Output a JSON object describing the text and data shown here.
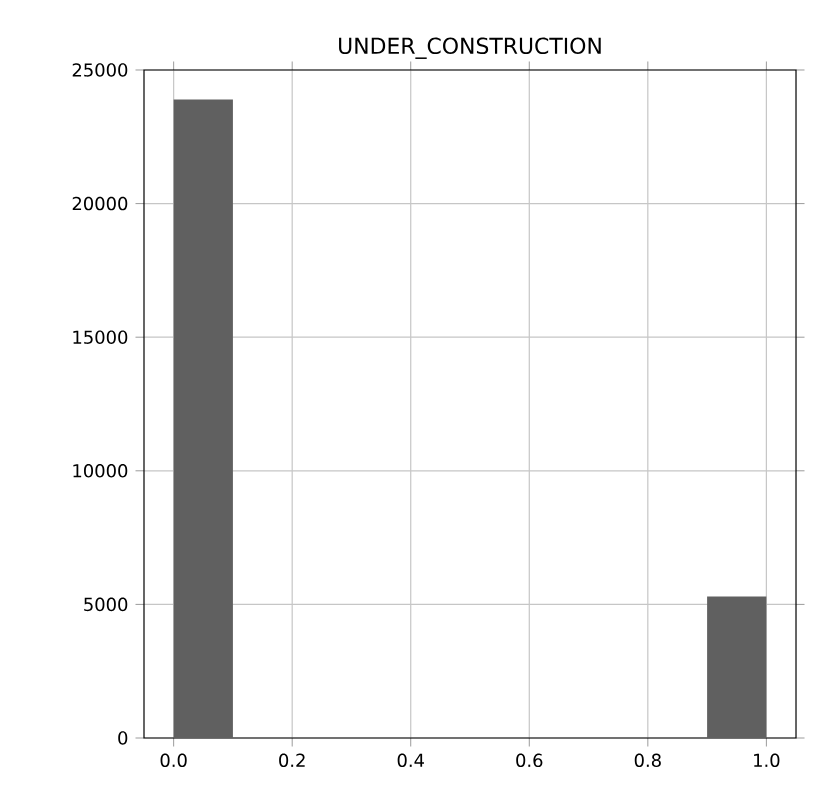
{
  "chart_data": {
    "type": "histogram",
    "title": "UNDER_CONSTRUCTION",
    "bins": [
      0.0,
      0.1,
      0.2,
      0.3,
      0.4,
      0.5,
      0.6,
      0.7,
      0.8,
      0.9,
      1.0
    ],
    "values": [
      23900,
      0,
      0,
      0,
      0,
      0,
      0,
      0,
      0,
      5300
    ],
    "color": "#606060",
    "xlim": [
      -0.05,
      1.05
    ],
    "ylim": [
      0,
      25000
    ],
    "xticks": [
      {
        "value": 0,
        "label": "0.0"
      },
      0.2,
      0.4,
      0.6,
      0.8,
      {
        "value": 1,
        "label": "1.0"
      }
    ],
    "yticks": [
      0,
      5000,
      10000,
      15000,
      20000,
      25000
    ],
    "grid": true
  }
}
